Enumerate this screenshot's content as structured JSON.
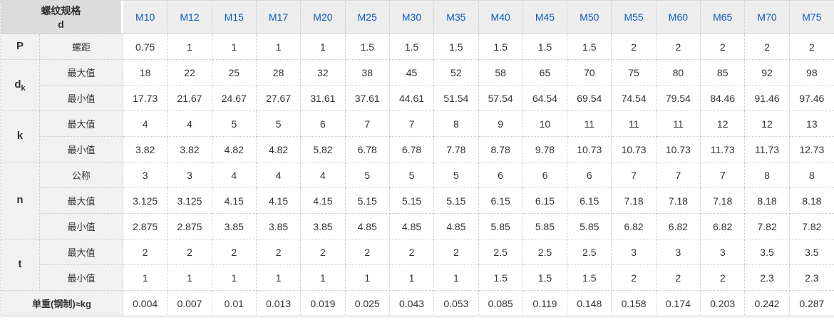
{
  "colors": {
    "header_text_blue": "#0b5cbe",
    "corner_bg": "#dcdcdc",
    "header_bg": "#ededed",
    "label_bg": "#f1f1f1",
    "cell_bg": "#ffffff",
    "border": "#c9c9c9",
    "text": "#333333"
  },
  "chart_data": {
    "type": "table",
    "corner_header": {
      "line1": "螺纹规格",
      "line2": "d"
    },
    "columns": [
      "M10",
      "M12",
      "M15",
      "M17",
      "M20",
      "M25",
      "M30",
      "M35",
      "M40",
      "M45",
      "M50",
      "M55",
      "M60",
      "M65",
      "M70",
      "M75"
    ],
    "row_groups": [
      {
        "group": "P",
        "sub": "",
        "rows": [
          {
            "label": "螺距",
            "values": [
              "0.75",
              "1",
              "1",
              "1",
              "1",
              "1.5",
              "1.5",
              "1.5",
              "1.5",
              "1.5",
              "1.5",
              "2",
              "2",
              "2",
              "2",
              "2"
            ]
          }
        ]
      },
      {
        "group": "d",
        "sub": "k",
        "rows": [
          {
            "label": "最大值",
            "values": [
              "18",
              "22",
              "25",
              "28",
              "32",
              "38",
              "45",
              "52",
              "58",
              "65",
              "70",
              "75",
              "80",
              "85",
              "92",
              "98"
            ]
          },
          {
            "label": "最小值",
            "values": [
              "17.73",
              "21.67",
              "24.67",
              "27.67",
              "31.61",
              "37.61",
              "44.61",
              "51.54",
              "57.54",
              "64.54",
              "69.54",
              "74.54",
              "79.54",
              "84.46",
              "91.46",
              "97.46"
            ]
          }
        ]
      },
      {
        "group": "k",
        "sub": "",
        "rows": [
          {
            "label": "最大值",
            "values": [
              "4",
              "4",
              "5",
              "5",
              "6",
              "7",
              "7",
              "8",
              "9",
              "10",
              "11",
              "11",
              "11",
              "12",
              "12",
              "13"
            ]
          },
          {
            "label": "最小值",
            "values": [
              "3.82",
              "3.82",
              "4.82",
              "4.82",
              "5.82",
              "6.78",
              "6.78",
              "7.78",
              "8.78",
              "9.78",
              "10.73",
              "10.73",
              "10.73",
              "11.73",
              "11.73",
              "12.73"
            ]
          }
        ]
      },
      {
        "group": "n",
        "sub": "",
        "rows": [
          {
            "label": "公称",
            "values": [
              "3",
              "3",
              "4",
              "4",
              "4",
              "5",
              "5",
              "5",
              "6",
              "6",
              "6",
              "7",
              "7",
              "7",
              "8",
              "8"
            ]
          },
          {
            "label": "最大值",
            "values": [
              "3.125",
              "3.125",
              "4.15",
              "4.15",
              "4.15",
              "5.15",
              "5.15",
              "5.15",
              "6.15",
              "6.15",
              "6.15",
              "7.18",
              "7.18",
              "7.18",
              "8.18",
              "8.18"
            ]
          },
          {
            "label": "最小值",
            "values": [
              "2.875",
              "2.875",
              "3.85",
              "3.85",
              "3.85",
              "4.85",
              "4.85",
              "4.85",
              "5.85",
              "5.85",
              "5.85",
              "6.82",
              "6.82",
              "6.82",
              "7.82",
              "7.82"
            ]
          }
        ]
      },
      {
        "group": "t",
        "sub": "",
        "rows": [
          {
            "label": "最大值",
            "values": [
              "2",
              "2",
              "2",
              "2",
              "2",
              "2",
              "2",
              "2",
              "2.5",
              "2.5",
              "2.5",
              "3",
              "3",
              "3",
              "3.5",
              "3.5"
            ]
          },
          {
            "label": "最小值",
            "values": [
              "1",
              "1",
              "1",
              "1",
              "1",
              "1",
              "1",
              "1",
              "1.5",
              "1.5",
              "1.5",
              "2",
              "2",
              "2",
              "2.3",
              "2.3"
            ]
          }
        ]
      }
    ],
    "footer": {
      "label": "单重(钢制)≈kg",
      "values": [
        "0.004",
        "0.007",
        "0.01",
        "0.013",
        "0.019",
        "0.025",
        "0.043",
        "0.053",
        "0.085",
        "0.119",
        "0.148",
        "0.158",
        "0.174",
        "0.203",
        "0.242",
        "0.287"
      ]
    }
  }
}
